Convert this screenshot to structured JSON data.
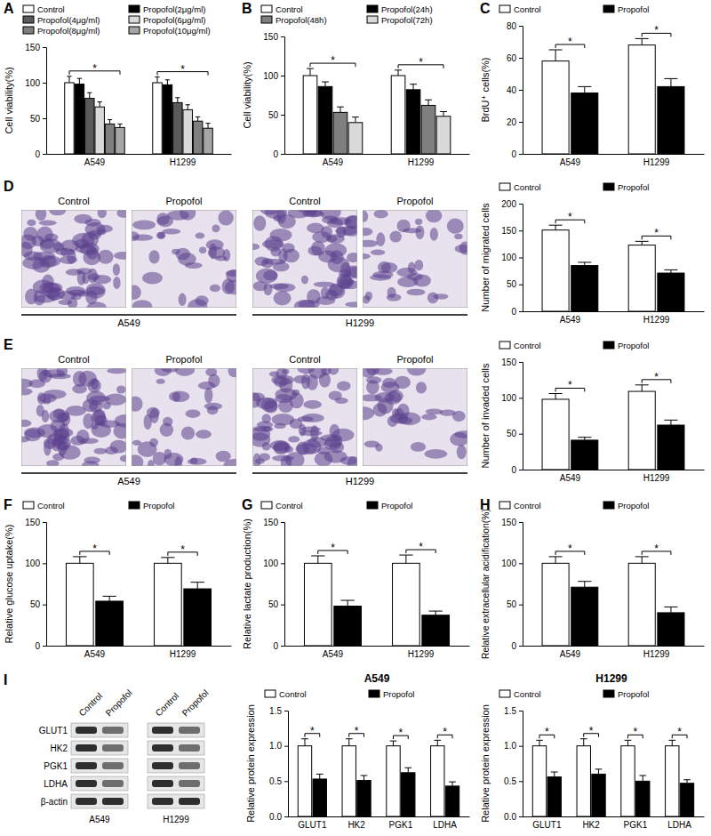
{
  "chart_data": [
    {
      "panel": "A",
      "type": "bar",
      "y_label": "Cell viability(%)",
      "categories": [
        "A549",
        "H1299"
      ],
      "series": [
        {
          "name": "Control",
          "color": "#ffffff",
          "values": [
            100,
            100
          ],
          "errors": [
            9,
            8
          ]
        },
        {
          "name": "Propofol(2μg/ml)",
          "color": "#000000",
          "values": [
            98,
            97
          ],
          "errors": [
            8,
            7
          ]
        },
        {
          "name": "Propofol(4μg/ml)",
          "color": "#5a5a5a",
          "values": [
            78,
            72
          ],
          "errors": [
            8,
            7
          ]
        },
        {
          "name": "Propofol(6μg/ml)",
          "color": "#d9d9d9",
          "values": [
            66,
            62
          ],
          "errors": [
            7,
            7
          ]
        },
        {
          "name": "Propofol(8μg/ml)",
          "color": "#7f7f7f",
          "values": [
            42,
            46
          ],
          "errors": [
            6,
            6
          ]
        },
        {
          "name": "Propofol(10μg/ml)",
          "color": "#a6a6a6",
          "values": [
            37,
            36
          ],
          "errors": [
            5,
            7
          ]
        }
      ],
      "ylim": [
        0,
        150
      ],
      "yticks": [
        0,
        50,
        100,
        150
      ],
      "legend": "top",
      "significance": [
        "*",
        "*"
      ]
    },
    {
      "panel": "B",
      "type": "bar",
      "y_label": "Cell viability(%)",
      "categories": [
        "A549",
        "H1299"
      ],
      "series": [
        {
          "name": "Control",
          "color": "#ffffff",
          "values": [
            100,
            100
          ],
          "errors": [
            9,
            7
          ]
        },
        {
          "name": "Propofol(24h)",
          "color": "#000000",
          "values": [
            86,
            82
          ],
          "errors": [
            6,
            7
          ]
        },
        {
          "name": "Propofol(48h)",
          "color": "#7f7f7f",
          "values": [
            53,
            62
          ],
          "errors": [
            7,
            7
          ]
        },
        {
          "name": "Propofol(72h)",
          "color": "#d9d9d9",
          "values": [
            40,
            48
          ],
          "errors": [
            7,
            6
          ]
        }
      ],
      "ylim": [
        0,
        150
      ],
      "yticks": [
        0,
        50,
        100,
        150
      ],
      "legend": "top",
      "significance": [
        "*",
        "*"
      ]
    },
    {
      "panel": "C",
      "type": "bar",
      "y_label": "BrdU⁺ cells(%)",
      "categories": [
        "A549",
        "H1299"
      ],
      "series": [
        {
          "name": "Control",
          "color": "#ffffff",
          "values": [
            58,
            68
          ],
          "errors": [
            7,
            4
          ]
        },
        {
          "name": "Propofol",
          "color": "#000000",
          "values": [
            38,
            42
          ],
          "errors": [
            4,
            5
          ]
        }
      ],
      "ylim": [
        0,
        80
      ],
      "yticks": [
        0,
        20,
        40,
        60,
        80
      ],
      "legend": "top",
      "significance": [
        "*",
        "*"
      ]
    },
    {
      "type": "bar",
      "y_label": "Number of migrated cells",
      "categories": [
        "A549",
        "H1299"
      ],
      "series": [
        {
          "name": "Control",
          "color": "#ffffff",
          "values": [
            151,
            123
          ],
          "errors": [
            9,
            7
          ]
        },
        {
          "name": "Propofol",
          "color": "#000000",
          "values": [
            85,
            71
          ],
          "errors": [
            6,
            6
          ]
        }
      ],
      "ylim": [
        0,
        200
      ],
      "yticks": [
        0,
        50,
        100,
        150,
        200
      ],
      "legend": "top",
      "significance": [
        "*",
        "*"
      ]
    },
    {
      "type": "bar",
      "y_label": "Number of invaded cells",
      "categories": [
        "A549",
        "H1299"
      ],
      "series": [
        {
          "name": "Control",
          "color": "#ffffff",
          "values": [
            98,
            109
          ],
          "errors": [
            8,
            9
          ]
        },
        {
          "name": "Propofol",
          "color": "#000000",
          "values": [
            41,
            62
          ],
          "errors": [
            4,
            7
          ]
        }
      ],
      "ylim": [
        0,
        150
      ],
      "yticks": [
        0,
        50,
        100,
        150
      ],
      "legend": "top",
      "significance": [
        "*",
        "*"
      ]
    },
    {
      "panel": "F",
      "type": "bar",
      "y_label": "Relative glucose uptake(%)",
      "categories": [
        "A549",
        "H1299"
      ],
      "series": [
        {
          "name": "Control",
          "color": "#ffffff",
          "values": [
            100,
            100
          ],
          "errors": [
            8,
            7
          ]
        },
        {
          "name": "Propofol",
          "color": "#000000",
          "values": [
            54,
            69
          ],
          "errors": [
            6,
            8
          ]
        }
      ],
      "ylim": [
        0,
        150
      ],
      "yticks": [
        0,
        50,
        100,
        150
      ],
      "legend": "top",
      "significance": [
        "*",
        "*"
      ]
    },
    {
      "panel": "G",
      "type": "bar",
      "y_label": "Relative lactate production(%)",
      "categories": [
        "A549",
        "H1299"
      ],
      "series": [
        {
          "name": "Control",
          "color": "#ffffff",
          "values": [
            100,
            100
          ],
          "errors": [
            9,
            10
          ]
        },
        {
          "name": "Propofol",
          "color": "#000000",
          "values": [
            48,
            37
          ],
          "errors": [
            7,
            5
          ]
        }
      ],
      "ylim": [
        0,
        150
      ],
      "yticks": [
        0,
        50,
        100,
        150
      ],
      "legend": "top",
      "significance": [
        "*",
        "*"
      ]
    },
    {
      "panel": "H",
      "type": "bar",
      "y_label": "Relative extracellular acidification(%)",
      "categories": [
        "A549",
        "H1299"
      ],
      "series": [
        {
          "name": "Control",
          "color": "#ffffff",
          "values": [
            100,
            100
          ],
          "errors": [
            8,
            8
          ]
        },
        {
          "name": "Propofol",
          "color": "#000000",
          "values": [
            71,
            40
          ],
          "errors": [
            7,
            7
          ]
        }
      ],
      "ylim": [
        0,
        150
      ],
      "yticks": [
        0,
        50,
        100,
        150
      ],
      "legend": "top",
      "significance": [
        "*",
        "*"
      ]
    },
    {
      "title": "A549",
      "type": "bar",
      "y_label": "Relative protein expression",
      "categories": [
        "GLUT1",
        "HK2",
        "PGK1",
        "LDHA"
      ],
      "series": [
        {
          "name": "Control",
          "color": "#ffffff",
          "values": [
            1,
            1,
            1,
            1
          ],
          "errors": [
            0.1,
            0.1,
            0.07,
            0.08
          ]
        },
        {
          "name": "Propofol",
          "color": "#000000",
          "values": [
            0.53,
            0.51,
            0.62,
            0.43
          ],
          "errors": [
            0.07,
            0.07,
            0.07,
            0.06
          ]
        }
      ],
      "ylim": [
        0,
        1.5
      ],
      "yticks": [
        {
          "value": 0,
          "label": "0.0"
        },
        0.5,
        {
          "value": 1,
          "label": "1.0"
        },
        1.5
      ],
      "legend": "top",
      "significance": [
        "*",
        "*",
        "*",
        "*"
      ]
    },
    {
      "title": "H1299",
      "type": "bar",
      "y_label": "Relative protein expression",
      "categories": [
        "GLUT1",
        "HK2",
        "PGK1",
        "LDHA"
      ],
      "series": [
        {
          "name": "Control",
          "color": "#ffffff",
          "values": [
            1,
            1,
            1,
            1
          ],
          "errors": [
            0.08,
            0.1,
            0.08,
            0.08
          ]
        },
        {
          "name": "Propofol",
          "color": "#000000",
          "values": [
            0.56,
            0.6,
            0.5,
            0.47
          ],
          "errors": [
            0.07,
            0.07,
            0.08,
            0.05
          ]
        }
      ],
      "ylim": [
        0,
        1.5
      ],
      "yticks": [
        {
          "value": 0,
          "label": "0.0"
        },
        0.5,
        {
          "value": 1,
          "label": "1.0"
        },
        1.5
      ],
      "legend": "top",
      "significance": [
        "*",
        "*",
        "*",
        "*"
      ]
    }
  ],
  "micrographs": [
    {
      "panel": "D",
      "labels": [
        "Control",
        "Propofol",
        "Control",
        "Propofol"
      ],
      "groups": [
        "A549",
        "H1299"
      ]
    },
    {
      "panel": "E",
      "labels": [
        "Control",
        "Propofol",
        "Control",
        "Propofol"
      ],
      "groups": [
        "A549",
        "H1299"
      ]
    }
  ],
  "blot": {
    "panel": "I",
    "lanes": [
      "Control",
      "Propofol",
      "Control",
      "Propofol"
    ],
    "proteins": [
      "GLUT1",
      "HK2",
      "PGK1",
      "LDHA",
      "β-actin"
    ],
    "groups": [
      "A549",
      "H1299"
    ]
  }
}
